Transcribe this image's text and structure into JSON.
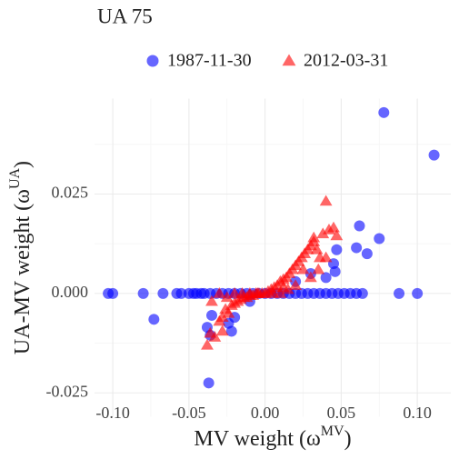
{
  "chart_data": {
    "type": "scatter",
    "title": "UA 75",
    "x_label": [
      "MV weight (ω",
      "MV",
      ")"
    ],
    "y_label": [
      "UA-MV weight (ω",
      "UA",
      ")"
    ],
    "xlim": [
      -0.112,
      0.122
    ],
    "ylim": [
      -0.031,
      0.049
    ],
    "xticks": [
      {
        "value": -0.1,
        "label": "-0.10"
      },
      -0.05,
      {
        "value": 0,
        "label": "0.00"
      },
      0.05,
      {
        "value": 0.1,
        "label": "0.10"
      }
    ],
    "yticks": [
      -0.025,
      {
        "value": 0,
        "label": "0.000"
      },
      0.025
    ],
    "xminor": [
      -0.075,
      -0.025,
      0.025,
      0.075
    ],
    "yminor": [
      -0.0125,
      0.0125,
      0.0375
    ],
    "grid": true,
    "legend": "top",
    "opacity": 0.6,
    "series": [
      {
        "name": "1987-11-30",
        "color": "#0000ff",
        "shape": "circle",
        "x": [
          -0.103,
          -0.1,
          -0.08,
          -0.067,
          -0.058,
          -0.055,
          -0.05,
          -0.047,
          -0.045,
          -0.042,
          -0.04,
          -0.036,
          -0.032,
          -0.028,
          -0.024,
          -0.02,
          -0.016,
          -0.012,
          -0.008,
          -0.004,
          0,
          0.004,
          0.008,
          0.012,
          0.016,
          0.02,
          0.024,
          0.028,
          0.032,
          0.036,
          0.04,
          0.044,
          0.048,
          0.052,
          0.056,
          0.06,
          0.064,
          0.088,
          0.1,
          0.078,
          0.111,
          0.062,
          0.075,
          0.06,
          0.067,
          0.047,
          0.045,
          0.046,
          0.04,
          -0.037,
          -0.073,
          -0.038,
          -0.036,
          -0.035,
          -0.022,
          -0.024,
          -0.02,
          0.02,
          0.03,
          -0.01
        ],
        "values": [
          0,
          0,
          0,
          0,
          0,
          0,
          0,
          0,
          0,
          0,
          0,
          0,
          0,
          0,
          0,
          0,
          0,
          0,
          0,
          0,
          0,
          0,
          0,
          0,
          0,
          0,
          0,
          0,
          0,
          0,
          0,
          0,
          0,
          0,
          0,
          0,
          0,
          0,
          0,
          0.0455,
          0.0348,
          0.017,
          0.0138,
          0.0115,
          0.01,
          0.011,
          0.0075,
          0.0055,
          0.004,
          -0.0225,
          -0.0065,
          -0.0085,
          -0.0105,
          -0.0055,
          -0.0095,
          -0.0075,
          -0.006,
          0.003,
          0.005,
          -0.002
        ]
      },
      {
        "name": "2012-03-31",
        "color": "#ff0000",
        "shape": "triangle",
        "x": [
          -0.038,
          -0.036,
          -0.033,
          -0.03,
          -0.028,
          -0.026,
          -0.024,
          -0.022,
          -0.02,
          -0.018,
          -0.016,
          -0.014,
          -0.012,
          -0.01,
          -0.008,
          -0.006,
          -0.004,
          -0.002,
          0,
          0.002,
          0.004,
          0.006,
          0.008,
          0.01,
          0.012,
          0.014,
          0.016,
          0.018,
          0.02,
          0.022,
          0.024,
          0.026,
          0.028,
          0.03,
          0.032,
          0.034,
          0.036,
          0.038,
          0.04,
          0.042,
          0.045,
          0.047,
          0.04,
          0.032,
          0.025,
          -0.035,
          -0.03,
          -0.025,
          -0.02,
          -0.015,
          -0.01,
          -0.005,
          0.005,
          0.01,
          0.015,
          0.02,
          0.03,
          0.035,
          -0.028,
          0.012
        ],
        "values": [
          -0.013,
          -0.01,
          -0.011,
          -0.007,
          -0.006,
          -0.004,
          -0.005,
          -0.003,
          -0.0025,
          -0.002,
          -0.0015,
          -0.001,
          -0.001,
          -0.0005,
          -0.0005,
          0,
          0,
          0,
          0,
          0.0005,
          0.001,
          0.0015,
          0.002,
          0.003,
          0.0035,
          0.004,
          0.005,
          0.006,
          0.007,
          0.008,
          0.009,
          0.01,
          0.011,
          0.012,
          0.013,
          0.011,
          0.009,
          0.015,
          0.0232,
          0.016,
          0.0165,
          0.0145,
          0.009,
          0.014,
          0.006,
          -0.002,
          0,
          -0.001,
          0,
          0,
          0,
          0,
          0,
          0,
          0.001,
          0.002,
          0.004,
          0.006,
          -0.0095,
          0.0015
        ]
      }
    ]
  }
}
